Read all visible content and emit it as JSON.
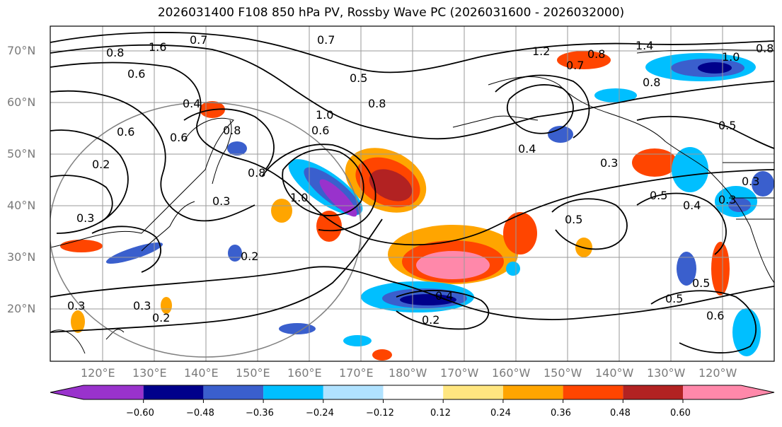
{
  "title": "2026031400 F108 850 hPa PV, Rossby Wave PC (2026031600 - 2026032000)",
  "lat_labels": [
    "70°N",
    "60°N",
    "50°N",
    "40°N",
    "30°N",
    "20°N"
  ],
  "lon_labels": [
    "120°E",
    "130°E",
    "140°E",
    "150°E",
    "160°E",
    "170°E",
    "180°W",
    "170°W",
    "160°W",
    "150°W",
    "140°W",
    "130°W",
    "120°W"
  ],
  "colorbar": {
    "colors": [
      "#9932cc",
      "#00008b",
      "#3a5fcd",
      "#00bfff",
      "#b0e2ff",
      "#ffffff",
      "#ffe680",
      "#ffa500",
      "#ff4500",
      "#b22222",
      "#ff88aa"
    ],
    "tick_labels": [
      "−0.60",
      "−0.48",
      "−0.36",
      "−0.24",
      "−0.12",
      "0.12",
      "0.24",
      "0.36",
      "0.48",
      "0.60"
    ]
  },
  "contour_labels": [
    "0.8",
    "1.6",
    "0.7",
    "0.6",
    "0.5",
    "0.7",
    "1.2",
    "0.8",
    "0.7",
    "1.4",
    "1.0",
    "0.8",
    "0.8",
    "0.6",
    "0.4",
    "1.0",
    "0.8",
    "0.4",
    "0.8",
    "0.5",
    "0.6",
    "0.2",
    "0.3",
    "0.8",
    "1.0",
    "0.6",
    "0.3",
    "0.5",
    "0.3",
    "0.4",
    "0.3",
    "0.3",
    "0.5",
    "0.2",
    "0.3",
    "0.2",
    "0.3",
    "0.4",
    "0.2",
    "0.5",
    "0.5",
    "0.6"
  ]
}
